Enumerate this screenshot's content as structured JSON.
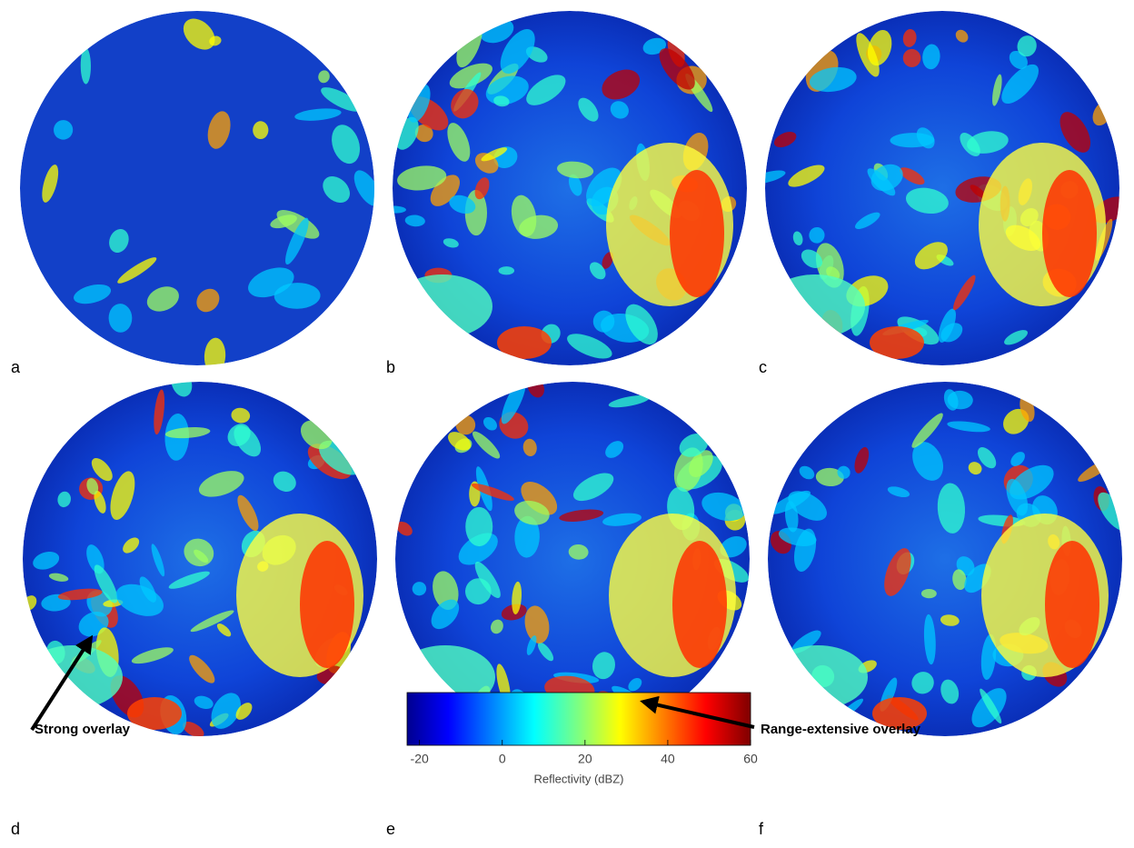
{
  "panels": [
    {
      "label": "a"
    },
    {
      "label": "b"
    },
    {
      "label": "c"
    },
    {
      "label": "d"
    },
    {
      "label": "e"
    },
    {
      "label": "f"
    }
  ],
  "annotations": [
    {
      "text": "Strong overlay"
    },
    {
      "text": "Range-extensive overlay"
    }
  ],
  "colorbar": {
    "label": "Reflectivity (dBZ)",
    "lim": [
      -23,
      60
    ],
    "ticks": [
      -20,
      0,
      20,
      40,
      60
    ]
  }
}
